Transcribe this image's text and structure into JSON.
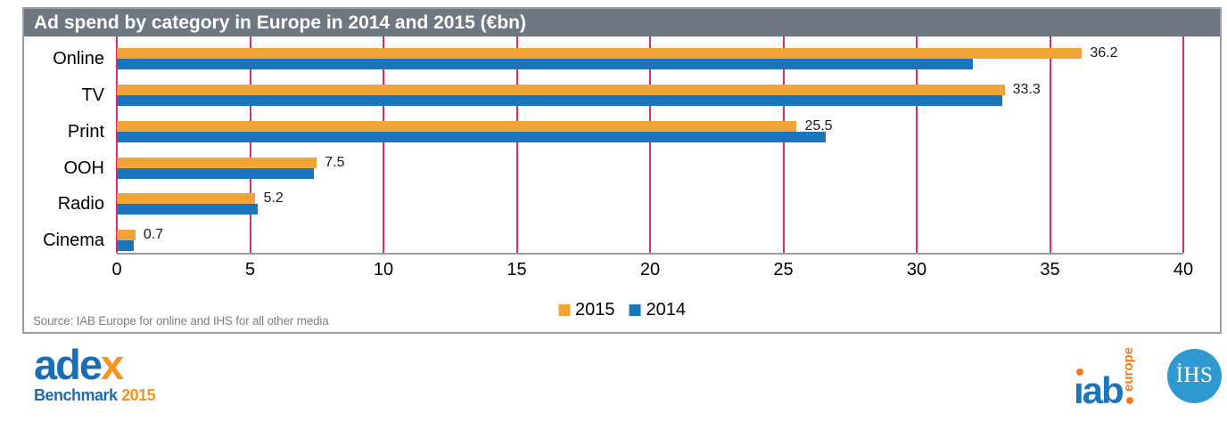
{
  "title": "Ad spend by category in Europe in 2014 and 2015 (€bn)",
  "source_note": "Source: IAB Europe for online and IHS for all other media",
  "colors": {
    "series_2015": "#F2A438",
    "series_2014": "#1B75BC",
    "gridline": "#E5286D",
    "title_bar": "#6F7780",
    "frame_border": "#96A1AB",
    "axis_line": "#9B9B9B",
    "source_text": "#808080",
    "adex_blue": "#1C6BB5",
    "adex_orange": "#F7941E",
    "iab_blue": "#1B75BC",
    "iab_orange": "#F47B20",
    "ihs_blue": "#2E9AD1"
  },
  "chart_data": {
    "type": "bar",
    "orientation": "horizontal",
    "title": "Ad spend by category in Europe in 2014 and 2015 (€bn)",
    "categories": [
      "Online",
      "TV",
      "Print",
      "OOH",
      "Radio",
      "Cinema"
    ],
    "series": [
      {
        "name": "2015",
        "color": "#F2A438",
        "values": [
          36.2,
          33.3,
          25.5,
          7.5,
          5.2,
          0.7
        ],
        "data_labels": [
          "36.2",
          "33.3",
          "25.5",
          "7.5",
          "5.2",
          "0.7"
        ],
        "show_labels": true
      },
      {
        "name": "2014",
        "color": "#1B75BC",
        "values": [
          32.1,
          33.2,
          26.6,
          7.4,
          5.3,
          0.65
        ],
        "show_labels": false
      }
    ],
    "xlim": [
      0,
      40
    ],
    "xticks": [
      0,
      5,
      10,
      15,
      20,
      25,
      30,
      35,
      40
    ],
    "xtick_labels": [
      "0",
      "5",
      "10",
      "15",
      "20",
      "25",
      "30",
      "35",
      "40"
    ],
    "grid": true,
    "legend_position": "bottom-center",
    "legend": [
      {
        "label": "2015",
        "color": "#F2A438"
      },
      {
        "label": "2014",
        "color": "#1B75BC"
      }
    ]
  },
  "logos": {
    "adex": {
      "word_blue": "ade",
      "word_orange": "x",
      "sub_blue": "Benchmark",
      "sub_orange": "2015"
    },
    "iab": {
      "word": "ıab",
      "vertical_text": "europe"
    },
    "ihs": {
      "text": "İHS"
    }
  }
}
